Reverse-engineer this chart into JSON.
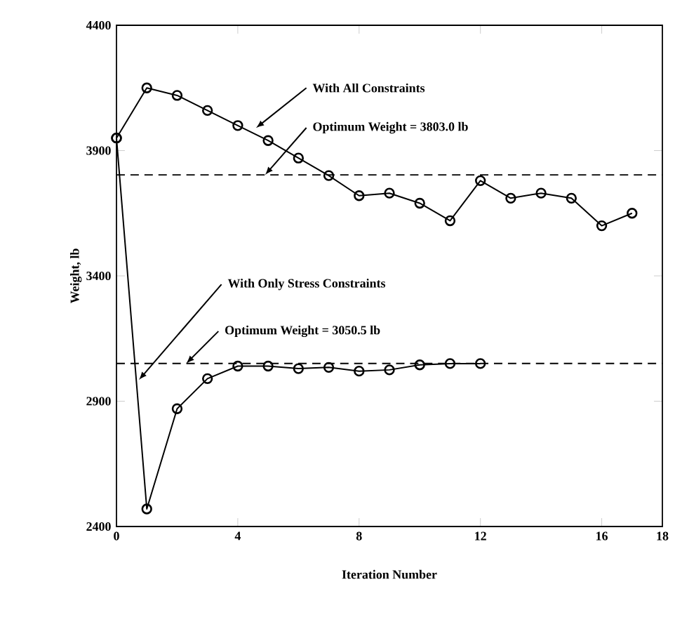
{
  "chart_data": {
    "type": "line",
    "xlabel": "Iteration Number",
    "ylabel": "Weight, lb",
    "xlim": [
      0,
      18
    ],
    "ylim": [
      2400,
      4400
    ],
    "xticks": [
      0,
      4,
      8,
      12,
      16,
      18
    ],
    "yticks": [
      2400,
      2900,
      3400,
      3900,
      4400
    ],
    "marker": "circle",
    "line_style": "solid",
    "grid": false,
    "series": [
      {
        "color": "#000000",
        "x": [
          0,
          1,
          2,
          3,
          4,
          5,
          6,
          7,
          8,
          9,
          10,
          11,
          12,
          13,
          14,
          15,
          16,
          17
        ],
        "values": [
          3950,
          4150,
          4120,
          4060,
          4000,
          3940,
          3870,
          3800,
          3720,
          3730,
          3690,
          3620,
          3780,
          3710,
          3730,
          3710,
          3600,
          3650
        ]
      },
      {
        "color": "#000000",
        "x": [
          0,
          1,
          2,
          3,
          4,
          5,
          6,
          7,
          8,
          9,
          10,
          11,
          12
        ],
        "values": [
          3950,
          2470,
          2870,
          2990,
          3040,
          3040,
          3030,
          3035,
          3020,
          3025,
          3045,
          3050,
          3050
        ]
      }
    ],
    "ref_lines": [
      {
        "axis": "y",
        "value": 3803.0,
        "label": "Optimum Weight = 3803.0 lb",
        "line_style": "dashed",
        "color": "#000000"
      },
      {
        "axis": "y",
        "value": 3050.5,
        "label": "Optimum Weight = 3050.5 lb",
        "line_style": "dashed",
        "color": "#000000"
      }
    ],
    "annotations": [
      {
        "text": "With All Constraints",
        "x": 4.6,
        "y": 3990
      },
      {
        "text": "With Only Stress Constraints",
        "x": 0.74,
        "y": 2985
      }
    ]
  }
}
